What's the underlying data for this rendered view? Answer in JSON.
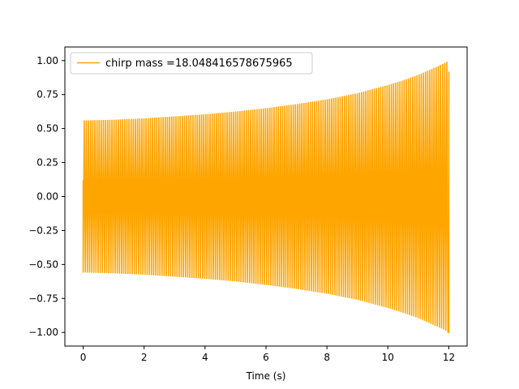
{
  "chart_data": {
    "type": "line",
    "title": "",
    "xlabel": "Time (s)",
    "ylabel": "",
    "xlim": [
      -0.6,
      12.6
    ],
    "ylim": [
      -1.1,
      1.1
    ],
    "grid": false,
    "legend_position": "top-left",
    "x_ticks": [
      0,
      2,
      4,
      6,
      8,
      10,
      12
    ],
    "x_tick_labels": [
      "0",
      "2",
      "4",
      "6",
      "8",
      "10",
      "12"
    ],
    "y_ticks": [
      -1.0,
      -0.75,
      -0.5,
      -0.25,
      0.0,
      0.25,
      0.5,
      0.75,
      1.0
    ],
    "y_tick_labels": [
      "−1.00",
      "−0.75",
      "−0.50",
      "−0.25",
      "0.00",
      "0.25",
      "0.50",
      "0.75",
      "1.00"
    ],
    "series": [
      {
        "name": "chirp mass =18.048416578675965",
        "color": "#FFA500",
        "x_start": 0.0,
        "x_end": 12.0,
        "envelope": {
          "x": [
            0,
            0.1,
            1,
            2,
            3,
            4,
            5,
            6,
            7,
            8,
            9,
            10,
            10.5,
            11,
            11.5,
            11.8,
            12.0
          ],
          "amplitude": [
            0.56,
            0.56,
            0.565,
            0.575,
            0.59,
            0.605,
            0.625,
            0.65,
            0.68,
            0.715,
            0.76,
            0.82,
            0.855,
            0.895,
            0.945,
            0.975,
            1.0
          ]
        }
      }
    ]
  }
}
